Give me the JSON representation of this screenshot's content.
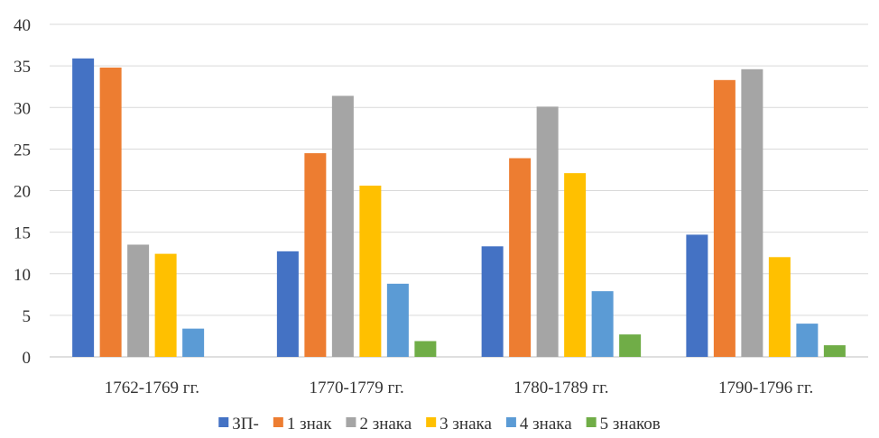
{
  "chart_data": {
    "type": "bar",
    "title": "",
    "xlabel": "",
    "ylabel": "",
    "ylim": [
      0,
      40
    ],
    "yticks": [
      0,
      5,
      10,
      15,
      20,
      25,
      30,
      35,
      40
    ],
    "grid": true,
    "legend_position": "bottom",
    "categories": [
      "1762-1769 гг.",
      "1770-1779 гг.",
      "1780-1789 гг.",
      "1790-1796 гг."
    ],
    "series": [
      {
        "name": "ЗП-",
        "color": "#4472C4",
        "values": [
          35.9,
          12.7,
          13.3,
          14.7
        ]
      },
      {
        "name": "1 знак",
        "color": "#ED7D31",
        "values": [
          34.8,
          24.5,
          23.9,
          33.3
        ]
      },
      {
        "name": "2 знака",
        "color": "#A5A5A5",
        "values": [
          13.5,
          31.4,
          30.1,
          34.6
        ]
      },
      {
        "name": "3 знака",
        "color": "#FFC000",
        "values": [
          12.4,
          20.6,
          22.1,
          12.0
        ]
      },
      {
        "name": "4 знака",
        "color": "#5B9BD5",
        "values": [
          3.4,
          8.8,
          7.9,
          4.0
        ]
      },
      {
        "name": "5 знаков",
        "color": "#70AD47",
        "values": [
          0,
          1.9,
          2.7,
          1.4
        ]
      }
    ]
  }
}
